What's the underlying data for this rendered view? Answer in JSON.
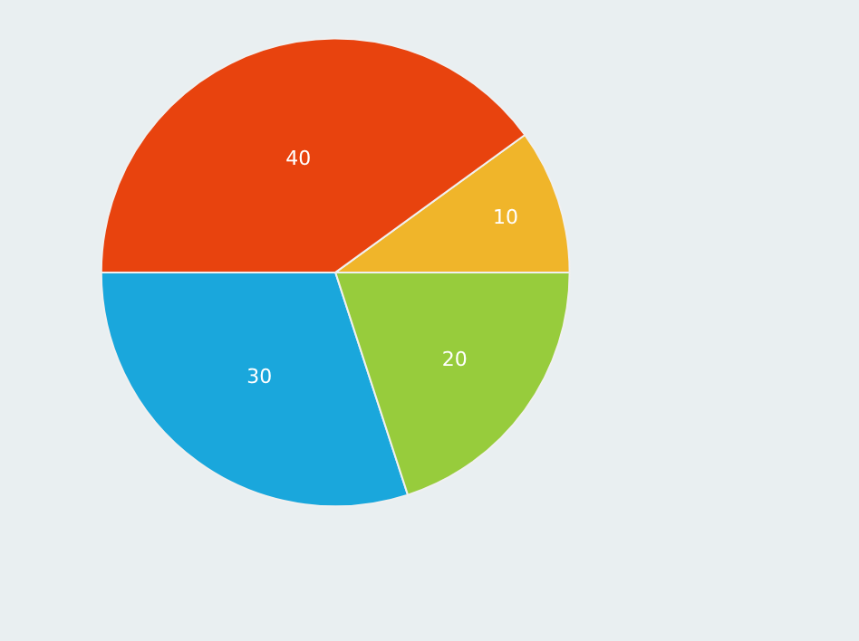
{
  "chart_data": {
    "type": "pie",
    "categories": [
      null,
      null,
      null,
      null
    ],
    "values": [
      10,
      40,
      30,
      20
    ],
    "colors": [
      "#f0b52a",
      "#e8430e",
      "#1aa7dc",
      "#97cc3c"
    ],
    "data_labels": true,
    "legend": false
  }
}
